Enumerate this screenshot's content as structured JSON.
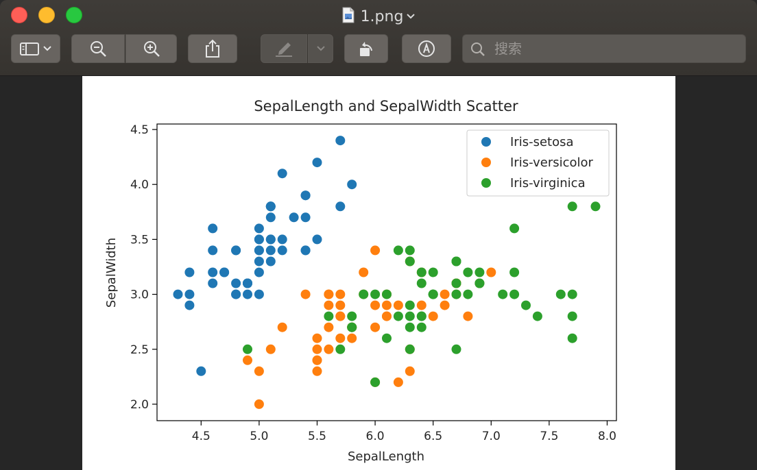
{
  "window": {
    "file_name": "1.png",
    "search_placeholder": "搜索"
  },
  "toolbar": {
    "icons": [
      "sidebar-icon",
      "chevron-down-icon",
      "zoom-out-icon",
      "zoom-in-icon",
      "share-icon",
      "markup-pen-icon",
      "chevron-down-icon",
      "rotate-icon",
      "annotate-icon",
      "search-icon"
    ]
  },
  "colors": {
    "setosa": "#1f77b4",
    "versicolor": "#ff7f0e",
    "virginica": "#2ca02c"
  },
  "chart_data": {
    "type": "scatter",
    "title": "SepalLength and SepalWidth Scatter",
    "xlabel": "SepalLength",
    "ylabel": "SepalWidth",
    "xlim": [
      4.12,
      8.08
    ],
    "ylim": [
      1.85,
      4.55
    ],
    "xticks": [
      "4.5",
      "5.0",
      "5.5",
      "6.0",
      "6.5",
      "7.0",
      "7.5",
      "8.0"
    ],
    "xtick_values": [
      4.5,
      5.0,
      5.5,
      6.0,
      6.5,
      7.0,
      7.5,
      8.0
    ],
    "yticks": [
      "2.0",
      "2.5",
      "3.0",
      "3.5",
      "4.0",
      "4.5"
    ],
    "ytick_values": [
      2.0,
      2.5,
      3.0,
      3.5,
      4.0,
      4.5
    ],
    "legend": "top-right",
    "grid": false,
    "series": [
      {
        "name": "Iris-setosa",
        "points": [
          [
            5.1,
            3.5
          ],
          [
            4.9,
            3.0
          ],
          [
            4.7,
            3.2
          ],
          [
            4.6,
            3.1
          ],
          [
            5.0,
            3.6
          ],
          [
            5.4,
            3.9
          ],
          [
            4.6,
            3.4
          ],
          [
            5.0,
            3.4
          ],
          [
            4.4,
            2.9
          ],
          [
            4.9,
            3.1
          ],
          [
            5.4,
            3.7
          ],
          [
            4.8,
            3.4
          ],
          [
            4.8,
            3.0
          ],
          [
            4.3,
            3.0
          ],
          [
            5.8,
            4.0
          ],
          [
            5.7,
            4.4
          ],
          [
            5.4,
            3.9
          ],
          [
            5.1,
            3.5
          ],
          [
            5.7,
            3.8
          ],
          [
            5.1,
            3.8
          ],
          [
            5.4,
            3.4
          ],
          [
            5.1,
            3.7
          ],
          [
            4.6,
            3.6
          ],
          [
            5.1,
            3.3
          ],
          [
            4.8,
            3.4
          ],
          [
            5.0,
            3.0
          ],
          [
            5.0,
            3.4
          ],
          [
            5.2,
            3.5
          ],
          [
            5.2,
            3.4
          ],
          [
            4.7,
            3.2
          ],
          [
            4.8,
            3.1
          ],
          [
            5.4,
            3.4
          ],
          [
            5.2,
            4.1
          ],
          [
            5.5,
            4.2
          ],
          [
            4.9,
            3.1
          ],
          [
            5.0,
            3.2
          ],
          [
            5.5,
            3.5
          ],
          [
            4.9,
            3.1
          ],
          [
            4.4,
            3.0
          ],
          [
            5.1,
            3.4
          ],
          [
            5.0,
            3.5
          ],
          [
            4.5,
            2.3
          ],
          [
            4.4,
            3.2
          ],
          [
            5.0,
            3.5
          ],
          [
            5.1,
            3.8
          ],
          [
            4.8,
            3.0
          ],
          [
            5.1,
            3.8
          ],
          [
            4.6,
            3.2
          ],
          [
            5.3,
            3.7
          ],
          [
            5.0,
            3.3
          ]
        ]
      },
      {
        "name": "Iris-versicolor",
        "points": [
          [
            7.0,
            3.2
          ],
          [
            6.4,
            3.2
          ],
          [
            6.9,
            3.1
          ],
          [
            5.5,
            2.3
          ],
          [
            6.5,
            2.8
          ],
          [
            5.7,
            2.8
          ],
          [
            6.3,
            3.3
          ],
          [
            4.9,
            2.4
          ],
          [
            6.6,
            2.9
          ],
          [
            5.2,
            2.7
          ],
          [
            5.0,
            2.0
          ],
          [
            5.9,
            3.0
          ],
          [
            6.0,
            2.2
          ],
          [
            6.1,
            2.9
          ],
          [
            5.6,
            2.9
          ],
          [
            6.7,
            3.1
          ],
          [
            5.6,
            3.0
          ],
          [
            5.8,
            2.7
          ],
          [
            6.2,
            2.2
          ],
          [
            5.6,
            2.5
          ],
          [
            5.9,
            3.2
          ],
          [
            6.1,
            2.8
          ],
          [
            6.3,
            2.5
          ],
          [
            6.1,
            2.8
          ],
          [
            6.4,
            2.9
          ],
          [
            6.6,
            3.0
          ],
          [
            6.8,
            2.8
          ],
          [
            6.7,
            3.0
          ],
          [
            6.0,
            2.9
          ],
          [
            5.7,
            2.6
          ],
          [
            5.5,
            2.4
          ],
          [
            5.5,
            2.4
          ],
          [
            5.8,
            2.7
          ],
          [
            6.0,
            2.7
          ],
          [
            5.4,
            3.0
          ],
          [
            6.0,
            3.4
          ],
          [
            6.7,
            3.1
          ],
          [
            6.3,
            2.3
          ],
          [
            5.6,
            3.0
          ],
          [
            5.5,
            2.5
          ],
          [
            5.5,
            2.6
          ],
          [
            6.1,
            3.0
          ],
          [
            5.8,
            2.6
          ],
          [
            5.0,
            2.3
          ],
          [
            5.6,
            2.7
          ],
          [
            5.7,
            3.0
          ],
          [
            5.7,
            2.9
          ],
          [
            6.2,
            2.9
          ],
          [
            5.1,
            2.5
          ],
          [
            5.7,
            2.8
          ]
        ]
      },
      {
        "name": "Iris-virginica",
        "points": [
          [
            6.3,
            3.3
          ],
          [
            5.8,
            2.7
          ],
          [
            7.1,
            3.0
          ],
          [
            6.3,
            2.9
          ],
          [
            6.5,
            3.0
          ],
          [
            7.6,
            3.0
          ],
          [
            4.9,
            2.5
          ],
          [
            7.3,
            2.9
          ],
          [
            6.7,
            2.5
          ],
          [
            7.2,
            3.6
          ],
          [
            6.5,
            3.2
          ],
          [
            6.4,
            2.7
          ],
          [
            6.8,
            3.0
          ],
          [
            5.7,
            2.5
          ],
          [
            5.8,
            2.8
          ],
          [
            6.4,
            3.2
          ],
          [
            6.5,
            3.0
          ],
          [
            7.7,
            3.8
          ],
          [
            7.7,
            2.6
          ],
          [
            6.0,
            2.2
          ],
          [
            6.9,
            3.2
          ],
          [
            5.6,
            2.8
          ],
          [
            7.7,
            2.8
          ],
          [
            6.3,
            2.7
          ],
          [
            6.7,
            3.3
          ],
          [
            7.2,
            3.2
          ],
          [
            6.2,
            2.8
          ],
          [
            6.1,
            3.0
          ],
          [
            6.4,
            2.8
          ],
          [
            7.2,
            3.0
          ],
          [
            7.4,
            2.8
          ],
          [
            7.9,
            3.8
          ],
          [
            6.4,
            2.8
          ],
          [
            6.3,
            2.8
          ],
          [
            6.1,
            2.6
          ],
          [
            7.7,
            3.0
          ],
          [
            6.3,
            3.4
          ],
          [
            6.4,
            3.1
          ],
          [
            6.0,
            3.0
          ],
          [
            6.9,
            3.1
          ],
          [
            6.7,
            3.1
          ],
          [
            6.9,
            3.1
          ],
          [
            5.8,
            2.7
          ],
          [
            6.8,
            3.2
          ],
          [
            6.7,
            3.3
          ],
          [
            6.7,
            3.0
          ],
          [
            6.3,
            2.5
          ],
          [
            6.5,
            3.0
          ],
          [
            6.2,
            3.4
          ],
          [
            5.9,
            3.0
          ]
        ]
      }
    ]
  }
}
